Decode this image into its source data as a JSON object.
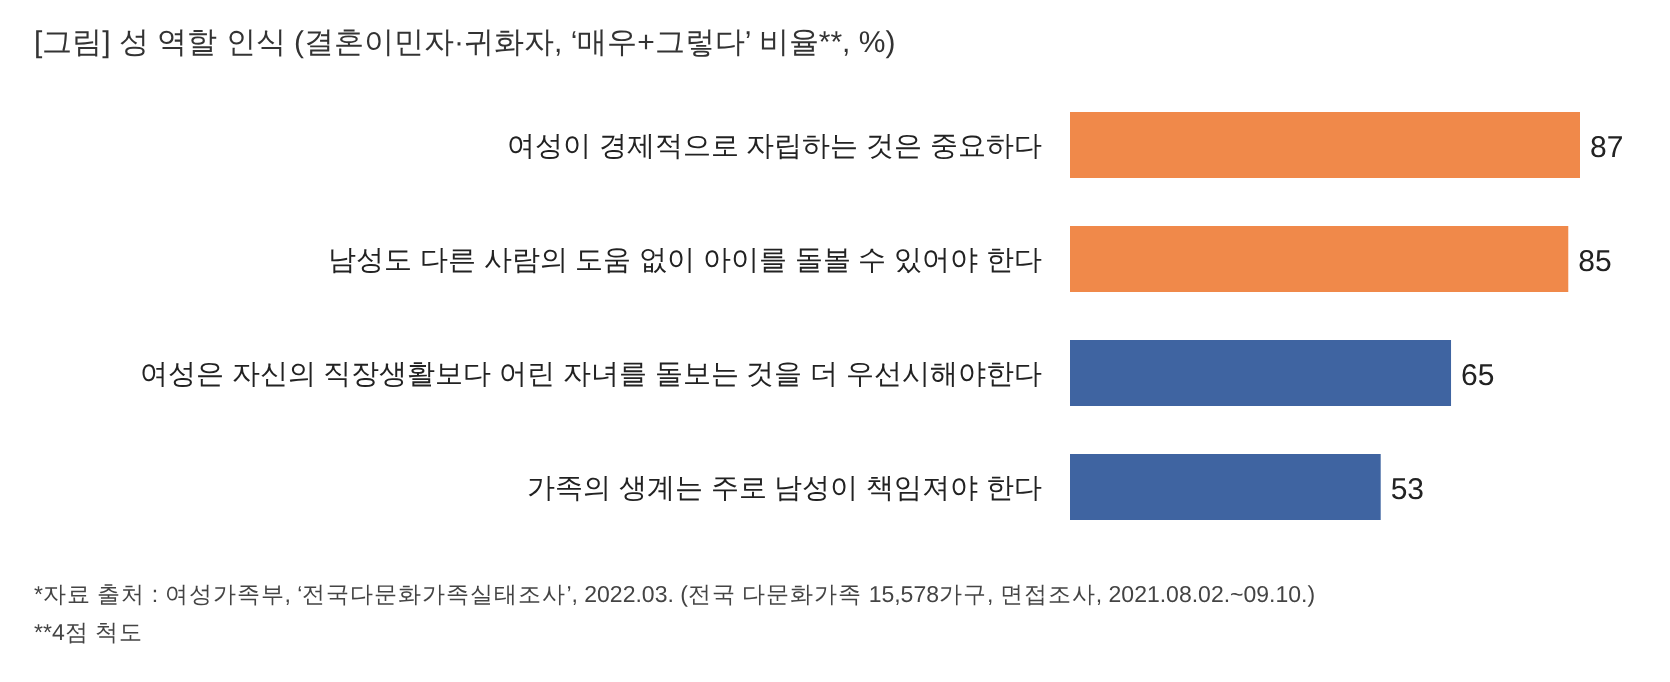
{
  "chart_data": {
    "type": "bar",
    "orientation": "horizontal",
    "title": "[그림] 성 역할 인식 (결혼이민자·귀화자, ‘매우+그렇다’ 비율**, %)",
    "categories": [
      "여성이 경제적으로 자립하는 것은 중요하다",
      "남성도 다른 사람의 도움 없이 아이를 돌볼 수 있어야 한다",
      "여성은 자신의 직장생활보다 어린 자녀를 돌보는 것을 더 우선시해야한다",
      "가족의 생계는 주로 남성이 책임져야 한다"
    ],
    "values": [
      87,
      85,
      65,
      53
    ],
    "colors": [
      "#f0894a",
      "#f0894a",
      "#3f64a1",
      "#3f64a1"
    ],
    "data_labels": true,
    "annotations": [
      "*자료 출처 : 여성가족부, ‘전국다문화가족실태조사’, 2022.03. (전국 다문화가족 15,578가구, 면접조사, 2021.08.02.~09.10.)",
      "**4점 척도"
    ]
  }
}
